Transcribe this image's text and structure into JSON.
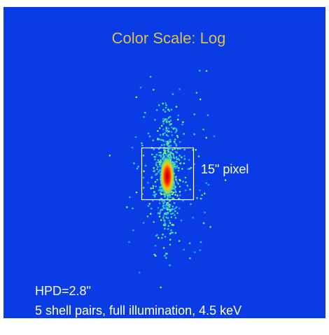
{
  "title": "Color Scale: Log",
  "box_label": "15\" pixel",
  "annotations": [
    "HPD=2.8\"",
    "5 shell pairs, full illumination, 4.5 keV"
  ]
}
